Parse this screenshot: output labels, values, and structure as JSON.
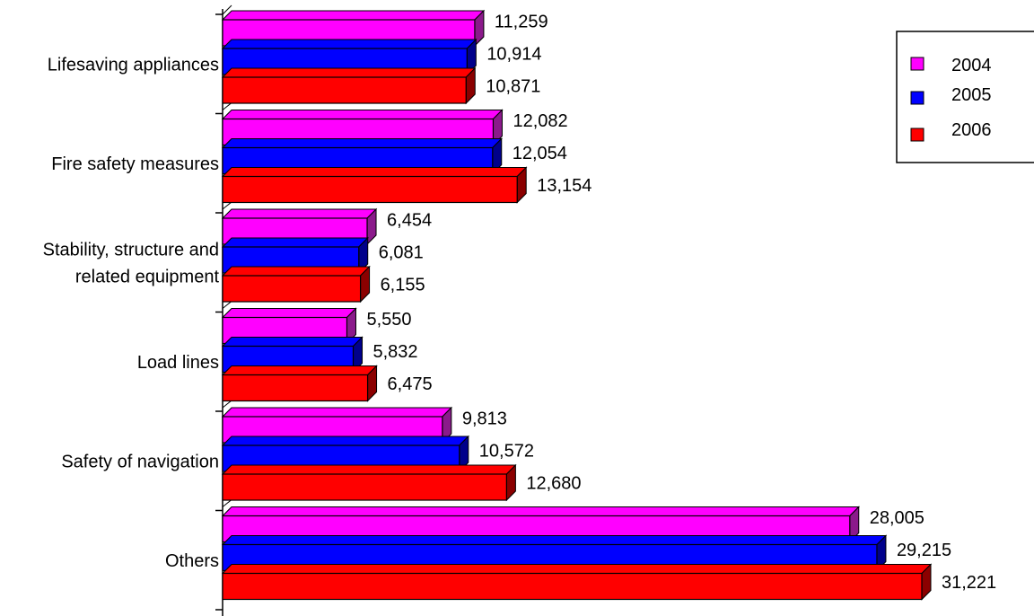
{
  "chart_data": {
    "type": "bar",
    "orientation": "horizontal",
    "style": "3d",
    "categories": [
      [
        "Lifesaving appliances"
      ],
      [
        "Fire safety measures"
      ],
      [
        "Stability, structure and",
        "related equipment"
      ],
      [
        "Load lines"
      ],
      [
        "Safety of navigation"
      ],
      [
        "Others"
      ]
    ],
    "series": [
      {
        "name": "2004",
        "color": "#FF00FF",
        "side_color": "#8B1A8B",
        "values": [
          11259,
          12082,
          6454,
          5550,
          9813,
          28005
        ]
      },
      {
        "name": "2005",
        "color": "#0000FF",
        "side_color": "#00008B",
        "values": [
          10914,
          12054,
          6081,
          5832,
          10572,
          29215
        ]
      },
      {
        "name": "2006",
        "color": "#FF0000",
        "side_color": "#8B0000",
        "values": [
          10871,
          13154,
          6155,
          6475,
          12680,
          31221
        ]
      }
    ],
    "value_labels": [
      [
        "11,259",
        "12,082",
        "6,454",
        "5,550",
        "9,813",
        "28,005"
      ],
      [
        "10,914",
        "12,054",
        "6,081",
        "5,832",
        "10,572",
        "29,215"
      ],
      [
        "10,871",
        "13,154",
        "6,155",
        "6,475",
        "12,680",
        "31,221"
      ]
    ],
    "xlim": [
      0,
      31221
    ],
    "grid": false,
    "legend_position": "top-right"
  }
}
